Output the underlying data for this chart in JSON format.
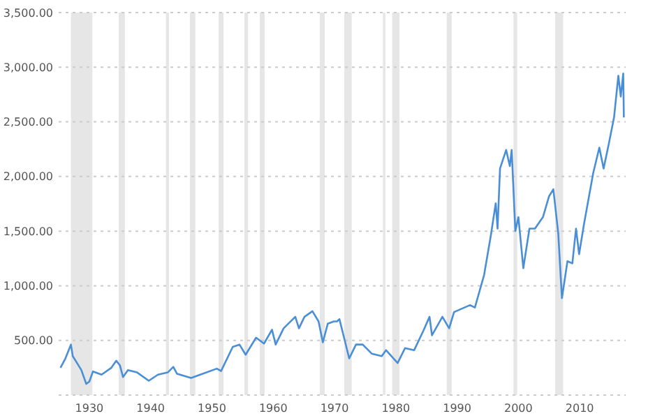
{
  "chart_data": {
    "type": "line",
    "xlim": [
      1925,
      2017.5
    ],
    "xticks": [
      1930,
      1940,
      1950,
      1960,
      1970,
      1980,
      1990,
      2000,
      2010
    ],
    "ylim": [
      0,
      3500
    ],
    "yticks": [
      {
        "value": 0,
        "label": null
      },
      {
        "value": 500,
        "label": "500.00"
      },
      {
        "value": 1000,
        "label": "1,000.00"
      },
      {
        "value": 1500,
        "label": "1,500.00"
      },
      {
        "value": 2000,
        "label": "2,000.00"
      },
      {
        "value": 2500,
        "label": "2,500.00"
      },
      {
        "value": 3000,
        "label": "3,000.00"
      },
      {
        "value": 3500,
        "label": "3,500.00"
      }
    ],
    "grid": "y",
    "line_style": "solid",
    "marker": "none",
    "bands": [
      {
        "axis": "x",
        "from": 1927.0,
        "to": 1930.5,
        "color": "#e6e6e6"
      },
      {
        "axis": "x",
        "from": 1934.8,
        "to": 1935.8,
        "color": "#e6e6e6"
      },
      {
        "axis": "x",
        "from": 1942.5,
        "to": 1943.0,
        "color": "#e6e6e6"
      },
      {
        "axis": "x",
        "from": 1946.4,
        "to": 1947.3,
        "color": "#e6e6e6"
      },
      {
        "axis": "x",
        "from": 1951.1,
        "to": 1951.9,
        "color": "#e6e6e6"
      },
      {
        "axis": "x",
        "from": 1955.3,
        "to": 1955.9,
        "color": "#e6e6e6"
      },
      {
        "axis": "x",
        "from": 1957.8,
        "to": 1958.6,
        "color": "#e6e6e6"
      },
      {
        "axis": "x",
        "from": 1967.6,
        "to": 1968.4,
        "color": "#e6e6e6"
      },
      {
        "axis": "x",
        "from": 1971.6,
        "to": 1972.8,
        "color": "#e6e6e6"
      },
      {
        "axis": "x",
        "from": 1977.9,
        "to": 1978.3,
        "color": "#e6e6e6"
      },
      {
        "axis": "x",
        "from": 1979.4,
        "to": 1980.6,
        "color": "#e6e6e6"
      },
      {
        "axis": "x",
        "from": 1988.3,
        "to": 1989.1,
        "color": "#e6e6e6"
      },
      {
        "axis": "x",
        "from": 1999.2,
        "to": 1999.8,
        "color": "#e6e6e6"
      },
      {
        "axis": "x",
        "from": 2006.0,
        "to": 2007.3,
        "color": "#e6e6e6"
      }
    ],
    "series": [
      {
        "color": "#4a8fd6",
        "x": [
          1925.3,
          1926.1,
          1927.0,
          1927.3,
          1928.0,
          1928.7,
          1929.5,
          1930.0,
          1930.6,
          1932.0,
          1933.6,
          1934.4,
          1935.0,
          1935.5,
          1936.3,
          1937.8,
          1939.7,
          1941.2,
          1942.8,
          1943.7,
          1944.3,
          1946.6,
          1948.1,
          1950.8,
          1951.5,
          1953.4,
          1954.5,
          1955.5,
          1957.2,
          1958.5,
          1959.8,
          1960.4,
          1961.7,
          1963.6,
          1964.2,
          1965.1,
          1966.4,
          1967.4,
          1968.1,
          1968.9,
          1969.9,
          1970.4,
          1970.8,
          1972.4,
          1973.5,
          1974.6,
          1976.1,
          1977.7,
          1978.4,
          1980.3,
          1981.5,
          1983.0,
          1984.5,
          1985.5,
          1985.9,
          1987.6,
          1988.7,
          1989.5,
          1992.1,
          1992.9,
          1994.4,
          1995.5,
          1996.3,
          1996.6,
          1997.0,
          1998.0,
          1998.6,
          1998.9,
          1999.5,
          2000.0,
          2000.8,
          2001.8,
          2002.7,
          2004.0,
          2005.0,
          2005.7,
          2006.5,
          2007.1,
          2008.0,
          2008.8,
          2009.4,
          2009.9,
          2010.7,
          2012.2,
          2013.2,
          2013.9,
          2014.7,
          2015.6,
          2016.3,
          2016.7,
          2017.1,
          2017.2
        ],
        "values": [
          250,
          335,
          462,
          356,
          293,
          229,
          102,
          123,
          216,
          187,
          250,
          314,
          271,
          165,
          229,
          207,
          131,
          187,
          207,
          258,
          195,
          156,
          187,
          242,
          220,
          441,
          462,
          369,
          525,
          471,
          598,
          462,
          611,
          716,
          611,
          716,
          767,
          674,
          483,
          653,
          674,
          674,
          695,
          335,
          462,
          462,
          378,
          356,
          411,
          293,
          429,
          411,
          589,
          716,
          547,
          716,
          611,
          759,
          823,
          801,
          1098,
          1459,
          1755,
          1523,
          2073,
          2243,
          2095,
          2243,
          1501,
          1628,
          1161,
          1523,
          1523,
          1628,
          1819,
          1883,
          1479,
          887,
          1225,
          1205,
          1523,
          1289,
          1565,
          2031,
          2264,
          2073,
          2286,
          2540,
          2922,
          2731,
          2942,
          2540
        ]
      }
    ]
  }
}
